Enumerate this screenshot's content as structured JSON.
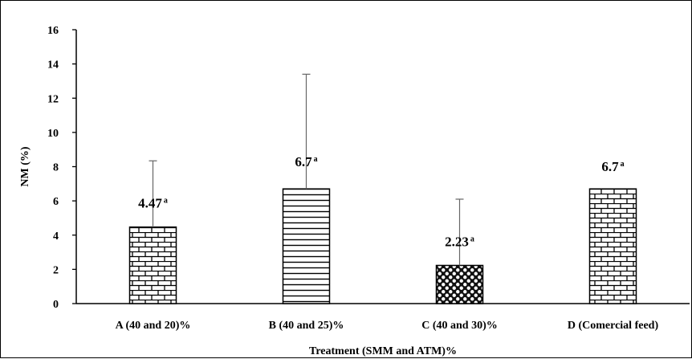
{
  "chart_data": {
    "type": "bar",
    "categories": [
      "A (40 and 20)%",
      "B (40 and 25)%",
      "C (40 and 30)%",
      "D (Comercial feed)"
    ],
    "values": [
      4.47,
      6.7,
      2.23,
      6.7
    ],
    "error_plus": [
      3.87,
      6.7,
      3.87,
      0
    ],
    "data_labels": [
      "4.47",
      "6.7",
      "2.23",
      "6.7"
    ],
    "data_label_superscripts": [
      "a",
      "a",
      "a",
      "a"
    ],
    "patterns": [
      "brick",
      "horizontal-lines",
      "dots-dark",
      "brick"
    ],
    "xlabel": "Treatment (SMM and ATM)%",
    "ylabel": "NM (%)",
    "ylim": [
      0,
      16
    ],
    "yticks": [
      0,
      2,
      4,
      6,
      8,
      10,
      12,
      14,
      16
    ],
    "grid": false,
    "legend": "none"
  }
}
